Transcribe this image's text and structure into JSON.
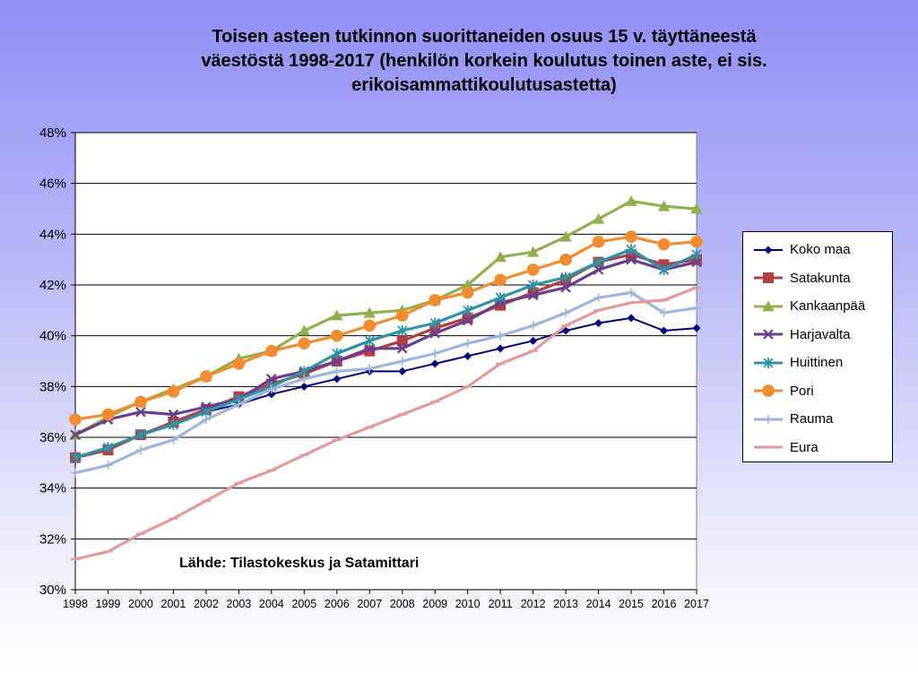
{
  "title_lines": [
    "Toisen asteen tutkinnon suorittaneiden osuus 15 v. täyttäneestä",
    "väestöstä 1998-2017 (henkilön korkein koulutus toinen aste, ei sis.",
    "erikoisammattikoulutusastetta)"
  ],
  "source_note": "Lähde: Tilastokeskus ja Satamittari",
  "chart_data": {
    "type": "line",
    "title": "Toisen asteen tutkinnon suorittaneiden osuus 15 v. täyttäneestä väestöstä 1998-2017 (henkilön korkein koulutus toinen aste, ei sis. erikoisammattikoulutusastetta)",
    "x": [
      "1998",
      "1999",
      "2000",
      "2001",
      "2002",
      "2003",
      "2004",
      "2005",
      "2006",
      "2007",
      "2008",
      "2009",
      "2010",
      "2011",
      "2012",
      "2013",
      "2014",
      "2015",
      "2016",
      "2017"
    ],
    "ylim": [
      30,
      48
    ],
    "yticks": [
      30,
      32,
      34,
      36,
      38,
      40,
      42,
      44,
      46,
      48
    ],
    "ytick_labels": [
      "30%",
      "32%",
      "34%",
      "36%",
      "38%",
      "40%",
      "42%",
      "44%",
      "46%",
      "48%"
    ],
    "y_unit": "%",
    "grid": true,
    "legend_position": "right",
    "series": [
      {
        "name": "Koko maa",
        "color": "#000080",
        "marker": "diamond",
        "values": [
          35.2,
          35.6,
          36.1,
          36.6,
          37.0,
          37.3,
          37.7,
          38.0,
          38.3,
          38.6,
          38.6,
          38.9,
          39.2,
          39.5,
          39.8,
          40.2,
          40.5,
          40.7,
          40.2,
          40.3
        ]
      },
      {
        "name": "Satakunta",
        "color": "#b24040",
        "marker": "square",
        "values": [
          35.2,
          35.5,
          36.1,
          36.6,
          37.1,
          37.6,
          38.1,
          38.5,
          39.0,
          39.4,
          39.8,
          40.3,
          40.7,
          41.2,
          41.7,
          42.2,
          42.9,
          43.2,
          42.8,
          43.0
        ]
      },
      {
        "name": "Kankaanpää",
        "color": "#8fb04a",
        "marker": "triangle",
        "values": [
          36.1,
          36.8,
          37.4,
          37.9,
          38.4,
          39.1,
          39.4,
          40.2,
          40.8,
          40.9,
          41.0,
          41.4,
          42.0,
          43.1,
          43.3,
          43.9,
          44.6,
          45.3,
          45.1,
          45.0
        ]
      },
      {
        "name": "Harjavalta",
        "color": "#6a3d8f",
        "marker": "x",
        "values": [
          36.1,
          36.7,
          37.0,
          36.9,
          37.2,
          37.5,
          38.3,
          38.6,
          39.0,
          39.5,
          39.5,
          40.1,
          40.6,
          41.3,
          41.6,
          41.9,
          42.6,
          43.0,
          42.6,
          42.9
        ]
      },
      {
        "name": "Huittinen",
        "color": "#2e93a8",
        "marker": "asterisk",
        "values": [
          35.2,
          35.6,
          36.1,
          36.5,
          37.0,
          37.5,
          38.0,
          38.6,
          39.3,
          39.8,
          40.2,
          40.5,
          41.0,
          41.5,
          42.0,
          42.3,
          42.9,
          43.4,
          42.6,
          43.2
        ]
      },
      {
        "name": "Pori",
        "color": "#f28c30",
        "marker": "circle",
        "values": [
          36.7,
          36.9,
          37.4,
          37.8,
          38.4,
          38.9,
          39.4,
          39.7,
          40.0,
          40.4,
          40.8,
          41.4,
          41.7,
          42.2,
          42.6,
          43.0,
          43.7,
          43.9,
          43.6,
          43.7
        ]
      },
      {
        "name": "Rauma",
        "color": "#9cb6dc",
        "marker": "plus",
        "values": [
          34.6,
          34.9,
          35.5,
          35.9,
          36.7,
          37.3,
          37.9,
          38.3,
          38.6,
          38.7,
          39.0,
          39.3,
          39.7,
          40.0,
          40.4,
          40.9,
          41.5,
          41.7,
          40.9,
          41.1
        ]
      },
      {
        "name": "Eura",
        "color": "#e6999a",
        "marker": "dash",
        "values": [
          31.2,
          31.5,
          32.2,
          32.8,
          33.5,
          34.2,
          34.7,
          35.3,
          35.9,
          36.4,
          36.9,
          37.4,
          38.0,
          38.9,
          39.4,
          40.4,
          41.0,
          41.3,
          41.4,
          41.9
        ]
      }
    ]
  }
}
